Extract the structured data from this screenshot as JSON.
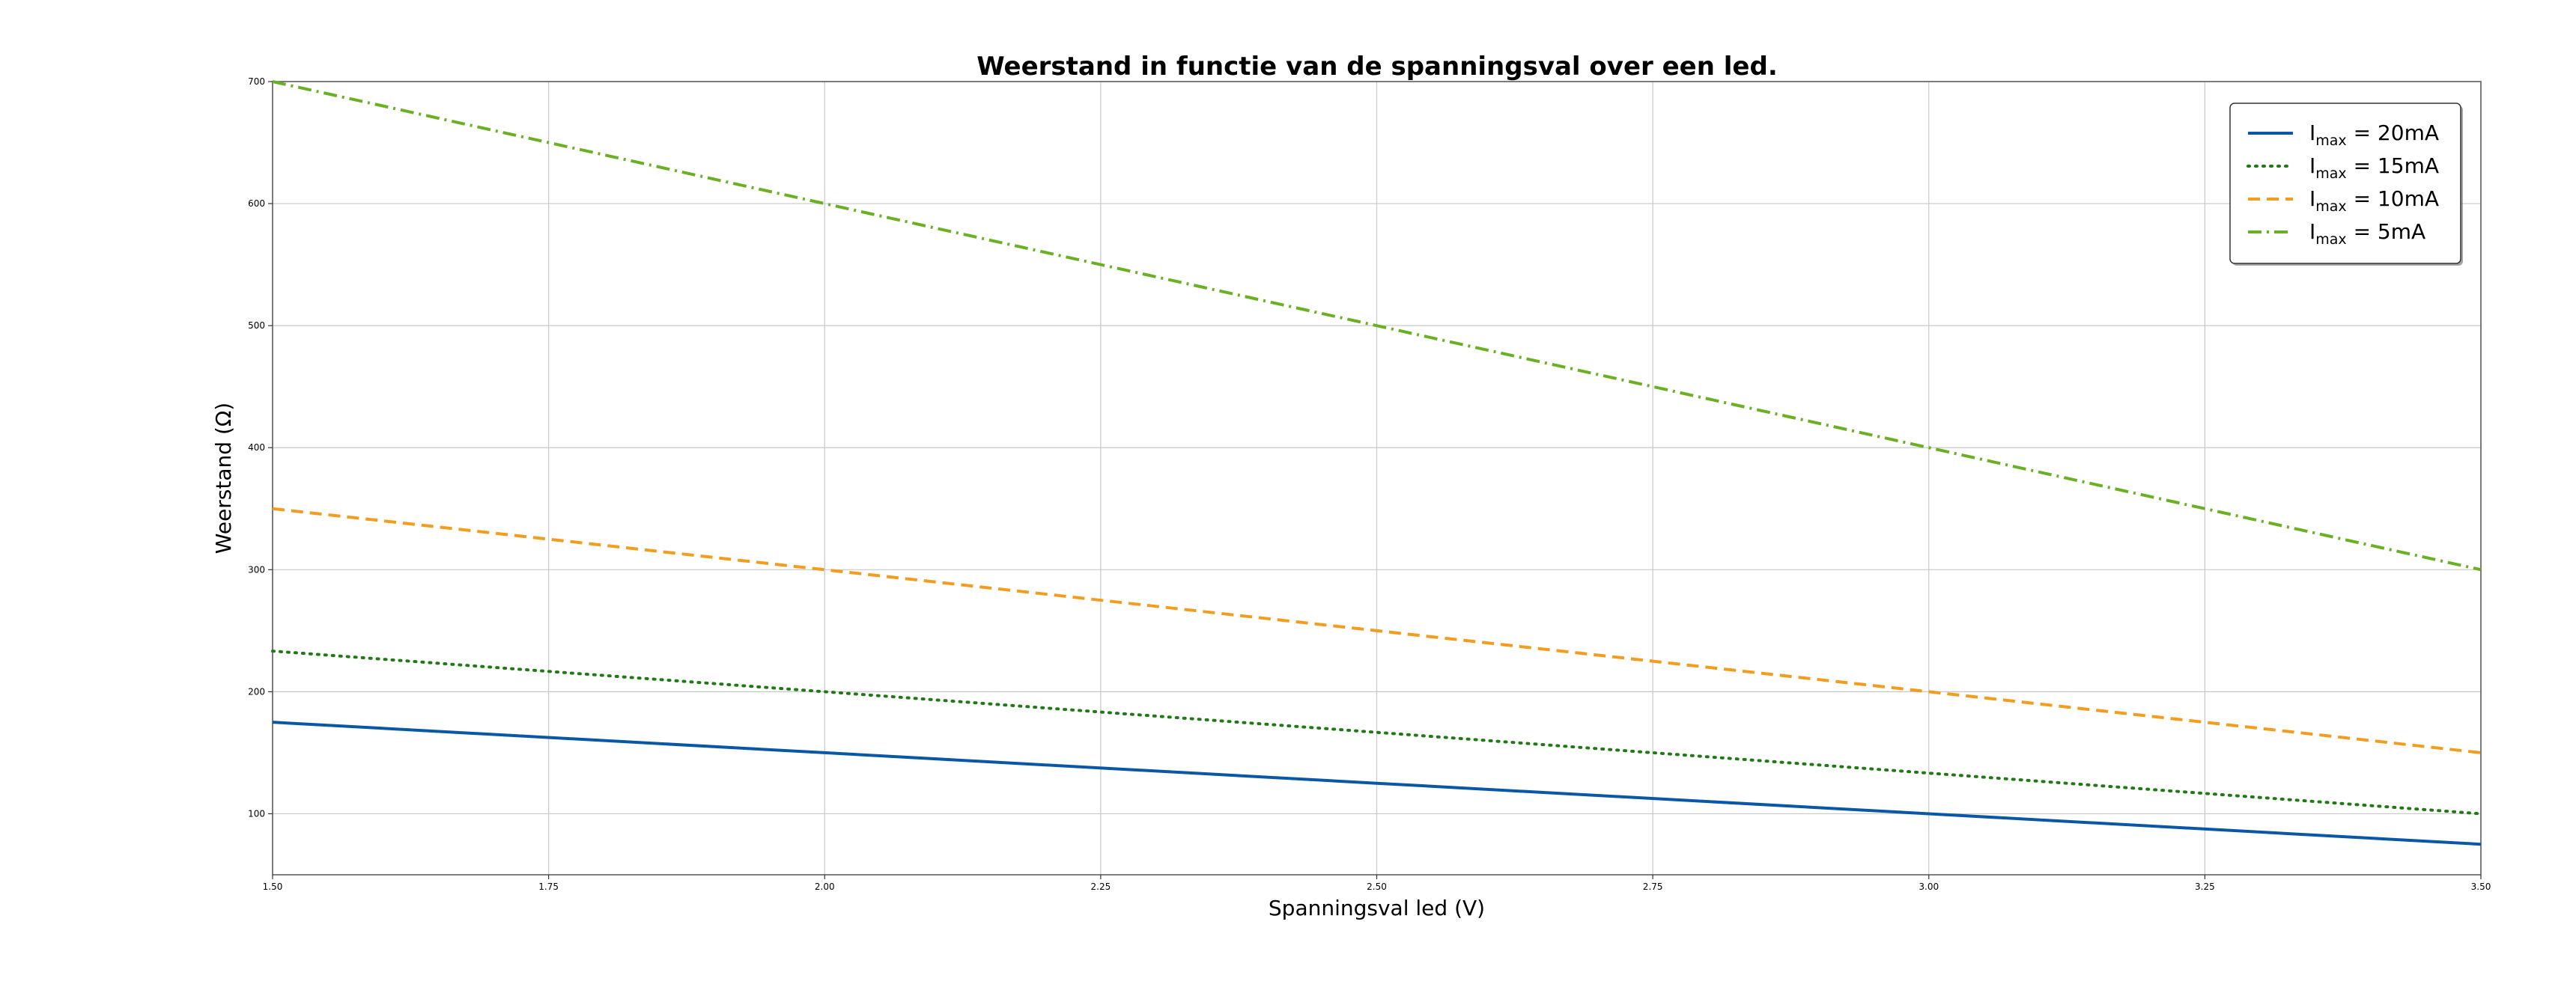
{
  "chart_data": {
    "type": "line",
    "title": "Weerstand in functie van de spanningsval over een led.",
    "xlabel": "Spanningsval led (V)",
    "ylabel": "Weerstand (Ω)",
    "xlim": [
      1.5,
      3.5
    ],
    "ylim": [
      50,
      700
    ],
    "x_ticks": [
      "1.50",
      "1.75",
      "2.00",
      "2.25",
      "2.50",
      "2.75",
      "3.00",
      "3.25",
      "3.50"
    ],
    "y_ticks": [
      "100",
      "200",
      "300",
      "400",
      "500",
      "600",
      "700"
    ],
    "grid": true,
    "legend_position": "top-right",
    "series": [
      {
        "name": "I",
        "sub": "max",
        "suffix": " = 20mA",
        "color": "#0a58a5",
        "style": "solid",
        "x": [
          1.5,
          2.0,
          2.5,
          3.0,
          3.5
        ],
        "values": [
          175,
          150,
          125,
          100,
          75
        ]
      },
      {
        "name": "I",
        "sub": "max",
        "suffix": " = 15mA",
        "color": "#1f7a14",
        "style": "dotted",
        "x": [
          1.5,
          2.0,
          2.5,
          3.0,
          3.5
        ],
        "values": [
          233.3,
          200,
          166.7,
          133.3,
          100
        ]
      },
      {
        "name": "I",
        "sub": "max",
        "suffix": " = 10mA",
        "color": "#f39c1e",
        "style": "dashed",
        "x": [
          1.5,
          2.0,
          2.5,
          3.0,
          3.5
        ],
        "values": [
          350,
          300,
          250,
          200,
          150
        ]
      },
      {
        "name": "I",
        "sub": "max",
        "suffix": " = 5mA",
        "color": "#6ab023",
        "style": "dashdot",
        "x": [
          1.5,
          2.0,
          2.5,
          3.0,
          3.5
        ],
        "values": [
          700,
          600,
          500,
          400,
          300
        ]
      }
    ]
  }
}
